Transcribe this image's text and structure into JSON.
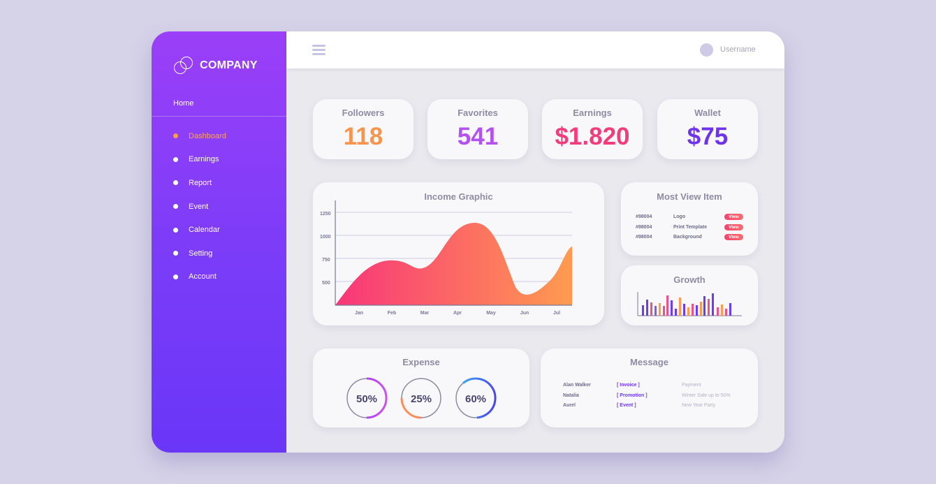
{
  "brand": {
    "name": "COMPANY"
  },
  "sidebar": {
    "home": "Home",
    "items": [
      {
        "label": "Dashboard",
        "active": true
      },
      {
        "label": "Earnings"
      },
      {
        "label": "Report"
      },
      {
        "label": "Event"
      },
      {
        "label": "Calendar"
      },
      {
        "label": "Setting"
      },
      {
        "label": "Account"
      }
    ]
  },
  "topbar": {
    "username": "Username",
    "menu_icon": "hamburger-icon"
  },
  "stats": [
    {
      "title": "Followers",
      "value": "118",
      "color": "#f7944e"
    },
    {
      "title": "Favorites",
      "value": "541",
      "color": "#b452f0"
    },
    {
      "title": "Earnings",
      "value": "$1.820",
      "color": "#f23d7a"
    },
    {
      "title": "Wallet",
      "value": "$75",
      "color": "#6f33ee"
    }
  ],
  "income": {
    "title": "Income Graphic",
    "chart_data": {
      "type": "area",
      "categories": [
        "Jan",
        "Feb",
        "Mar",
        "Apr",
        "May",
        "Jun",
        "Jul"
      ],
      "yticks": [
        500,
        750,
        1000,
        1250
      ],
      "ylim": [
        250,
        1250
      ]
    }
  },
  "most_view": {
    "title": "Most View Item",
    "rows": [
      {
        "id": "#98004",
        "name": "Logo",
        "action": "View"
      },
      {
        "id": "#98004",
        "name": "Print Template",
        "action": "View"
      },
      {
        "id": "#98004",
        "name": "Background",
        "action": "View"
      }
    ]
  },
  "growth": {
    "title": "Growth"
  },
  "expense": {
    "title": "Expense",
    "rings": [
      {
        "label": "50%",
        "value": 0.5
      },
      {
        "label": "25%",
        "value": 0.25
      },
      {
        "label": "60%",
        "value": 0.6
      }
    ]
  },
  "message": {
    "title": "Message",
    "rows": [
      {
        "name": "Alan Walker",
        "tag": "[ Invoice ]",
        "text": "Payment"
      },
      {
        "name": "Natalia",
        "tag": "[ Promotion ]",
        "text": "Winter Sale up to 50%"
      },
      {
        "name": "Aurel",
        "tag": "[ Event ]",
        "text": "New Year Party"
      }
    ]
  }
}
